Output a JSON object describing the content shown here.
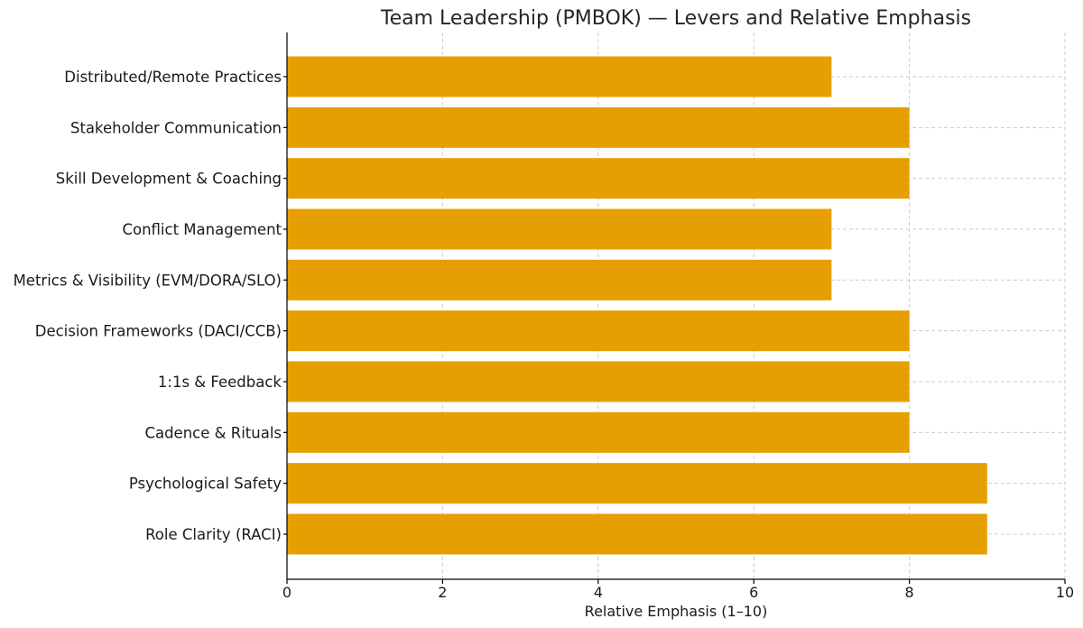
{
  "chart_data": {
    "type": "bar",
    "orientation": "horizontal",
    "title": "Team Leadership (PMBOK) — Levers and Relative Emphasis",
    "xlabel": "Relative Emphasis (1–10)",
    "ylabel": "",
    "xlim": [
      0,
      10
    ],
    "xticks": [
      0,
      2,
      4,
      6,
      8,
      10
    ],
    "grid": true,
    "bar_color": "#E69F00",
    "categories": [
      "Role Clarity (RACI)",
      "Psychological Safety",
      "Cadence & Rituals",
      "1:1s & Feedback",
      "Decision Frameworks (DACI/CCB)",
      "Metrics & Visibility (EVM/DORA/SLO)",
      "Conflict Management",
      "Skill Development & Coaching",
      "Stakeholder Communication",
      "Distributed/Remote Practices"
    ],
    "values": [
      9,
      9,
      8,
      8,
      8,
      7,
      7,
      8,
      8,
      7
    ]
  }
}
